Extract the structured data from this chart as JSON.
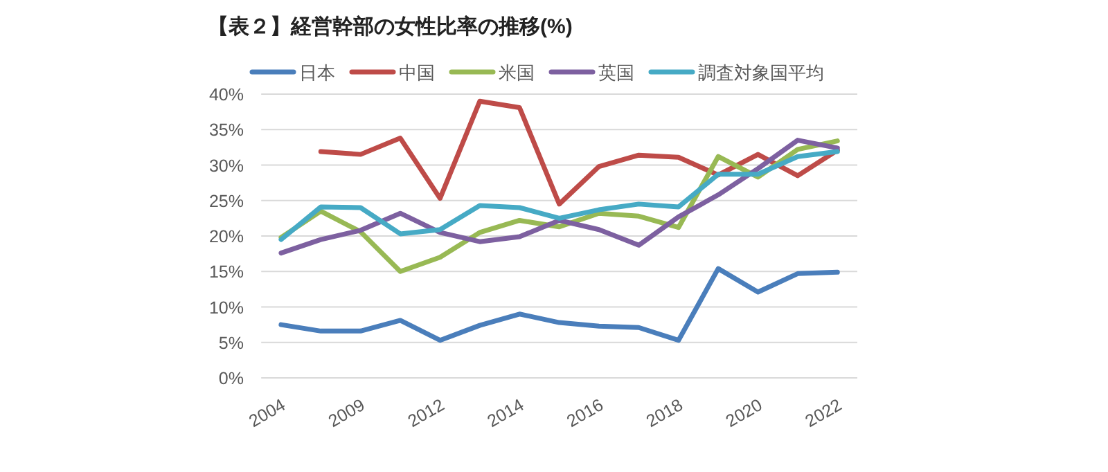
{
  "chart_data": {
    "type": "line",
    "title": "【表２】経営幹部の女性比率の推移(%)",
    "categories": [
      "2004",
      null,
      "2009",
      null,
      "2012",
      null,
      "2014",
      null,
      "2016",
      null,
      "2018",
      null,
      "2020",
      null,
      "2022"
    ],
    "series": [
      {
        "name": "日本",
        "color": "#4a7ebb",
        "values": [
          7.5,
          6.6,
          6.6,
          8.1,
          5.3,
          7.4,
          9.0,
          7.8,
          7.3,
          7.1,
          5.3,
          15.4,
          12.1,
          14.7,
          14.9
        ]
      },
      {
        "name": "中国",
        "color": "#be4b48",
        "values": [
          null,
          31.9,
          31.5,
          33.8,
          25.3,
          39.0,
          38.1,
          24.5,
          29.8,
          31.4,
          31.1,
          28.6,
          31.5,
          28.5,
          32.1
        ]
      },
      {
        "name": "米国",
        "color": "#98b954",
        "values": [
          19.8,
          23.5,
          20.6,
          15.0,
          17.0,
          20.5,
          22.2,
          21.3,
          23.2,
          22.8,
          21.2,
          31.2,
          28.3,
          32.2,
          33.4
        ]
      },
      {
        "name": "英国",
        "color": "#7d60a0",
        "values": [
          17.6,
          19.5,
          20.8,
          23.2,
          20.5,
          19.2,
          19.9,
          22.2,
          20.9,
          18.7,
          22.7,
          25.8,
          29.5,
          33.5,
          32.4
        ]
      },
      {
        "name": "調査対象国平均",
        "color": "#46aac5",
        "values": [
          19.5,
          24.1,
          24.0,
          20.3,
          20.9,
          24.3,
          24.0,
          22.5,
          23.7,
          24.5,
          24.1,
          28.7,
          28.7,
          31.2,
          31.9
        ]
      }
    ],
    "ylim": [
      0,
      40
    ],
    "yticks": [
      {
        "value": 0,
        "label": "0%"
      },
      {
        "value": 5,
        "label": "5%"
      },
      {
        "value": 10,
        "label": "10%"
      },
      {
        "value": 15,
        "label": "15%"
      },
      {
        "value": 20,
        "label": "20%"
      },
      {
        "value": 25,
        "label": "25%"
      },
      {
        "value": 30,
        "label": "30%"
      },
      {
        "value": 35,
        "label": "35%"
      },
      {
        "value": 40,
        "label": "40%"
      }
    ],
    "grid": "y",
    "legend": "top",
    "marker": "none",
    "line_style": "solid"
  }
}
